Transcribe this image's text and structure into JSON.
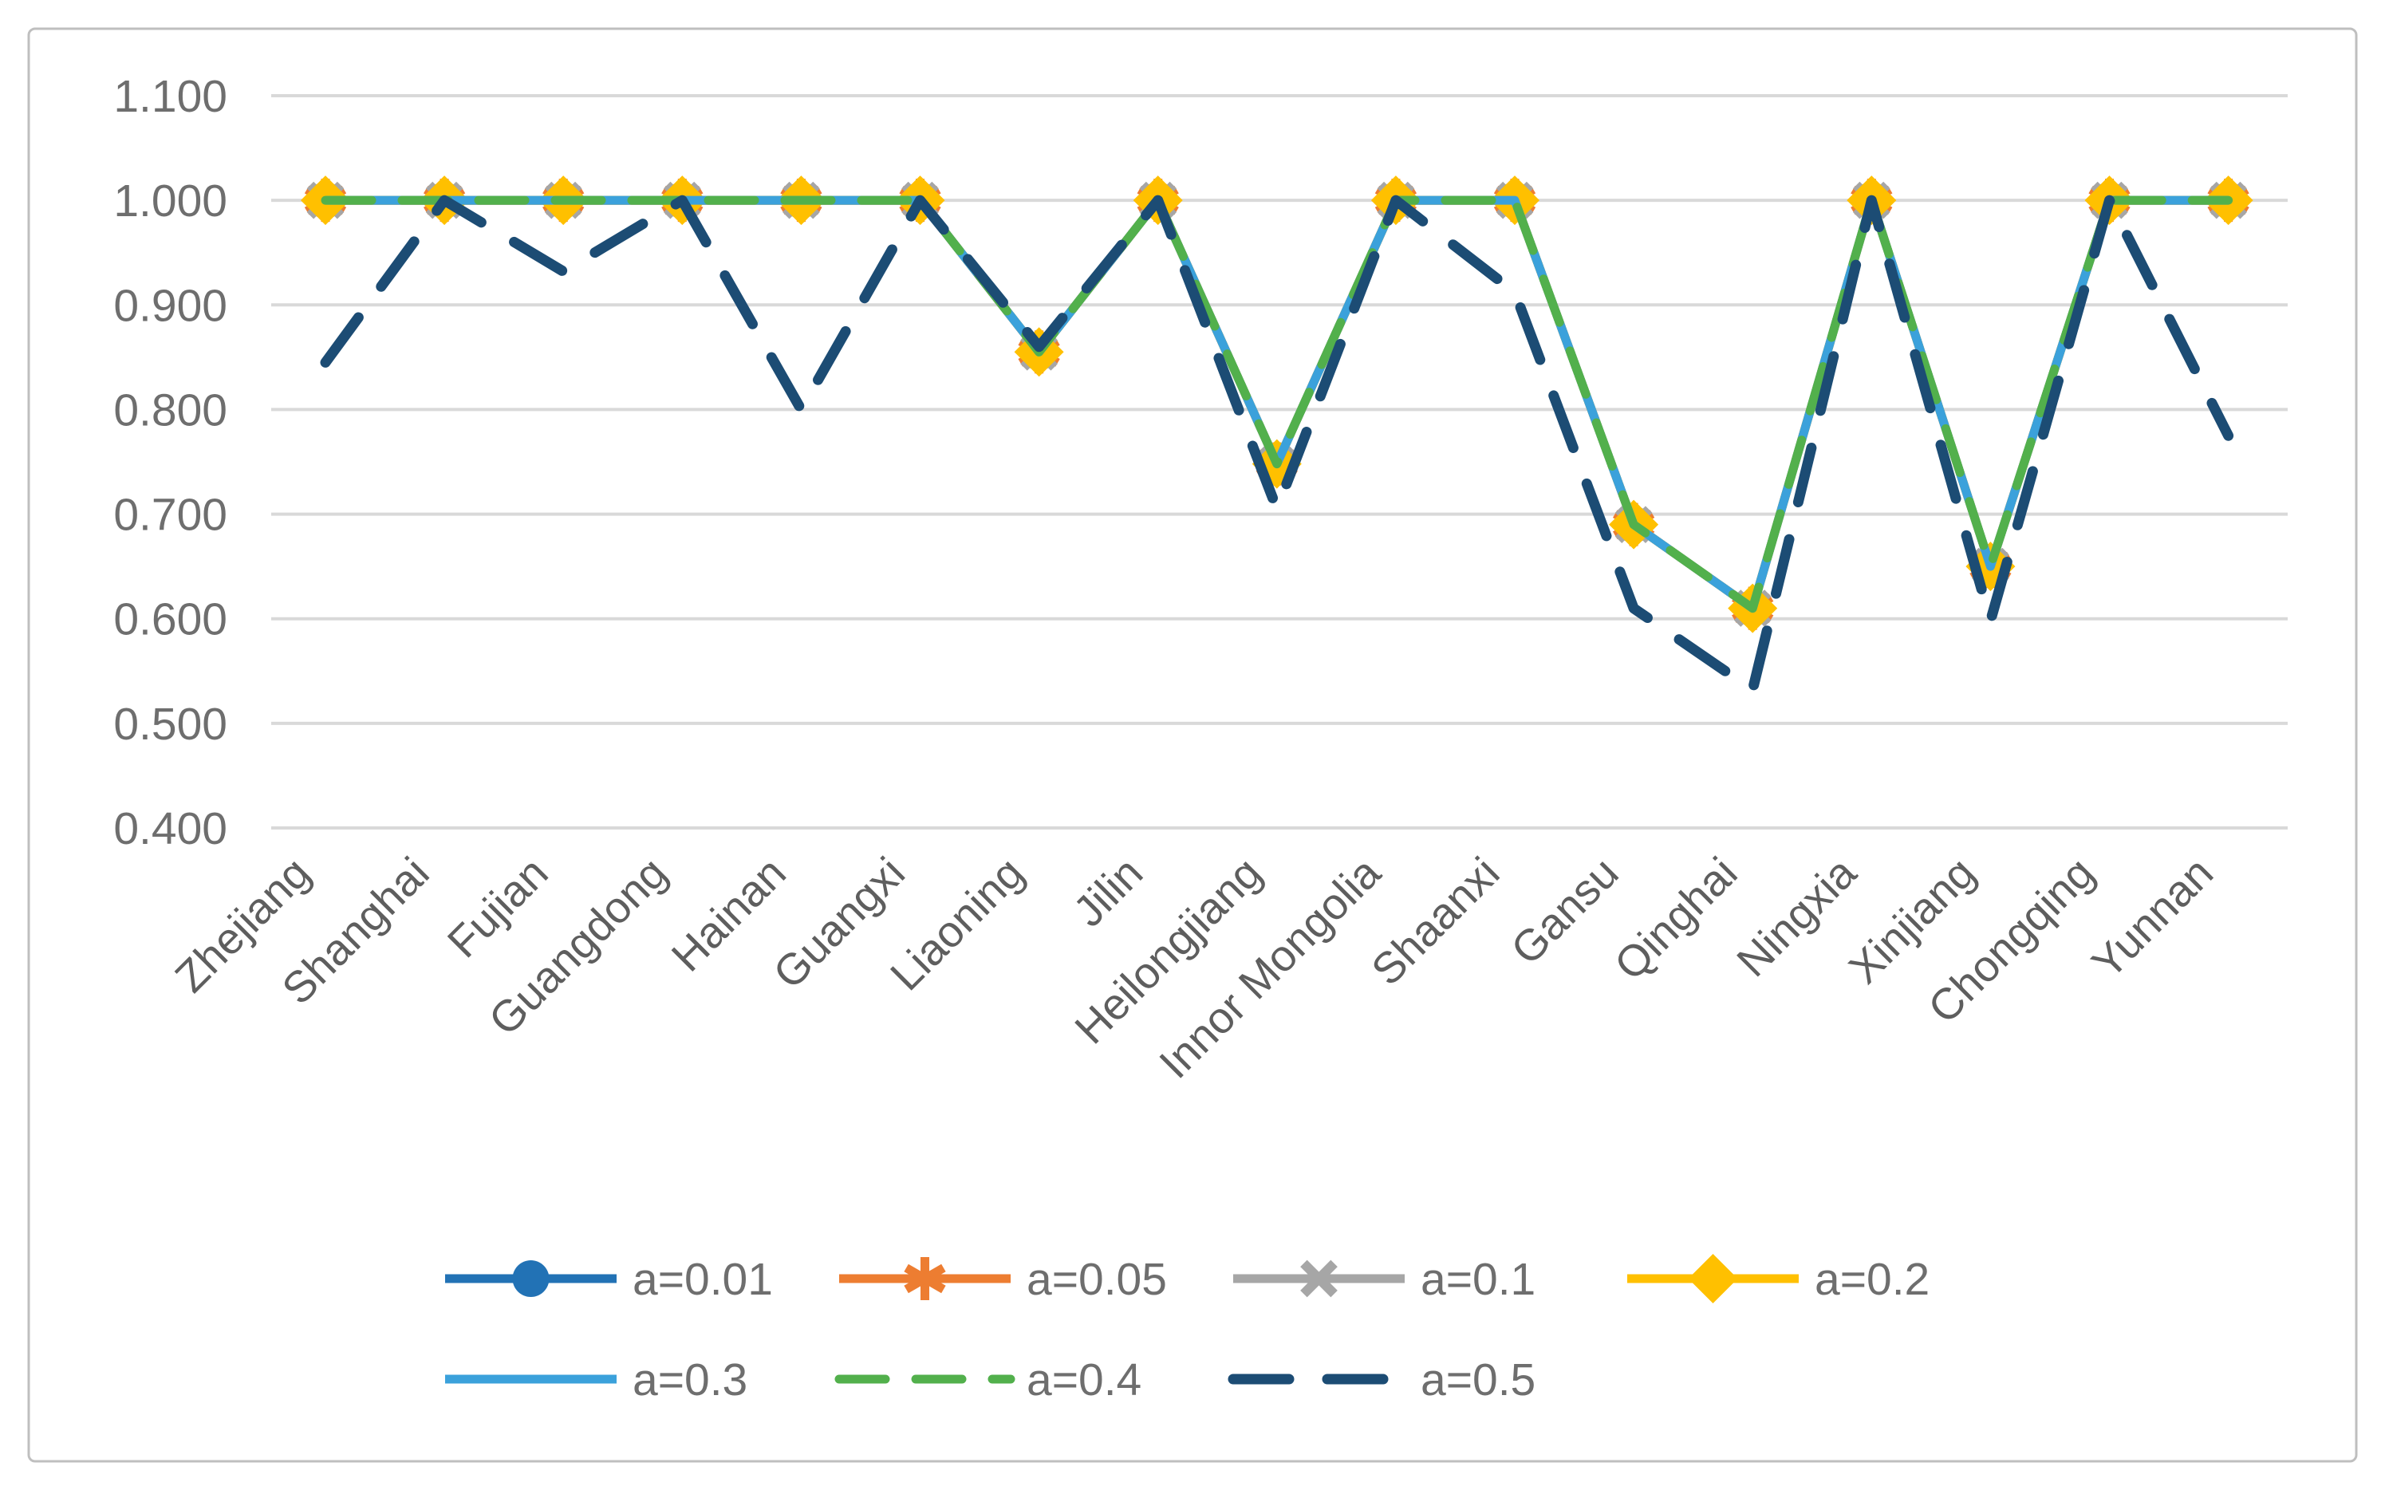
{
  "figure": {
    "background": "#FFFFFF",
    "border_color": "#BFBFBF",
    "gridline_color": "#D9D9D9",
    "axis_text_color": "#6E6E6E",
    "legend_text_color": "#6E6E6E"
  },
  "chart_data": {
    "type": "line",
    "title": "",
    "xlabel": "",
    "ylabel": "",
    "grid": "horizontal",
    "legend_position": "bottom",
    "ylim": [
      0.4,
      1.1
    ],
    "ytick_step": 0.1,
    "ytick_labels": [
      "1.100",
      "1.000",
      "0.900",
      "0.800",
      "0.700",
      "0.600",
      "0.500",
      "0.400"
    ],
    "categories": [
      "Zhejiang",
      "Shanghai",
      "Fujian",
      "Guangdong",
      "Hainan",
      "Guangxi",
      "Liaoning",
      "Jilin",
      "Heilongjiang",
      "Innor Mongolia",
      "Shaanxi",
      "Gansu",
      "Qinghai",
      "Ningxia",
      "Xinjiang",
      "Chongqing",
      "Yunnan"
    ],
    "series": [
      {
        "name": "a=0.01",
        "color": "#2272B5",
        "marker": "circle",
        "dash": "solid",
        "values": [
          1.0,
          1.0,
          1.0,
          1.0,
          1.0,
          1.0,
          0.855,
          1.0,
          0.748,
          1.0,
          1.0,
          0.69,
          0.61,
          1.0,
          0.65,
          1.0,
          1.0
        ]
      },
      {
        "name": "a=0.05",
        "color": "#ED7D31",
        "marker": "asterisk",
        "dash": "solid",
        "values": [
          1.0,
          1.0,
          1.0,
          1.0,
          1.0,
          1.0,
          0.855,
          1.0,
          0.748,
          1.0,
          1.0,
          0.69,
          0.61,
          1.0,
          0.65,
          1.0,
          1.0
        ]
      },
      {
        "name": "a=0.1",
        "color": "#A6A6A6",
        "marker": "x",
        "dash": "solid",
        "values": [
          1.0,
          1.0,
          1.0,
          1.0,
          1.0,
          1.0,
          0.855,
          1.0,
          0.748,
          1.0,
          1.0,
          0.69,
          0.61,
          1.0,
          0.65,
          1.0,
          1.0
        ]
      },
      {
        "name": "a=0.2",
        "color": "#FFC000",
        "marker": "diamond",
        "dash": "solid",
        "values": [
          1.0,
          1.0,
          1.0,
          1.0,
          1.0,
          1.0,
          0.855,
          1.0,
          0.748,
          1.0,
          1.0,
          0.69,
          0.61,
          1.0,
          0.65,
          1.0,
          1.0
        ]
      },
      {
        "name": "a=0.3",
        "color": "#3BA1DB",
        "marker": "none",
        "dash": "solid",
        "values": [
          1.0,
          1.0,
          1.0,
          1.0,
          1.0,
          1.0,
          0.855,
          1.0,
          0.748,
          1.0,
          1.0,
          0.69,
          0.61,
          1.0,
          0.65,
          1.0,
          1.0
        ]
      },
      {
        "name": "a=0.4",
        "color": "#52B04C",
        "marker": "none",
        "dash": "dashed",
        "values": [
          1.0,
          1.0,
          1.0,
          1.0,
          1.0,
          1.0,
          0.855,
          1.0,
          0.748,
          1.0,
          1.0,
          0.69,
          0.61,
          1.0,
          0.65,
          1.0,
          1.0
        ]
      },
      {
        "name": "a=0.5",
        "color": "#1C4C74",
        "marker": "none",
        "dash": "long-dash",
        "values": [
          0.845,
          1.0,
          0.932,
          1.0,
          0.8,
          1.0,
          0.86,
          1.0,
          0.705,
          1.0,
          0.912,
          0.61,
          0.532,
          1.0,
          0.598,
          1.0,
          0.775
        ]
      }
    ]
  }
}
